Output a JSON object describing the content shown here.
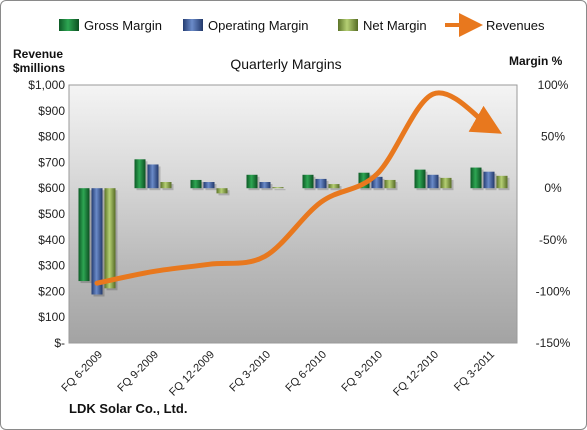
{
  "chart_data": {
    "type": "bar",
    "title": "Quarterly Margins",
    "categories": [
      "FQ 6-2009",
      "FQ 9-2009",
      "FQ 12-2009",
      "FQ 3-2010",
      "FQ 6-2010",
      "FQ 9-2010",
      "FQ 12-2010",
      "FQ 3-2011"
    ],
    "series": [
      {
        "name": "Gross Margin",
        "axis": "right",
        "color": "#1e7a3c",
        "values": [
          -90,
          28,
          8,
          13,
          13,
          15,
          18,
          20
        ]
      },
      {
        "name": "Operating Margin",
        "axis": "right",
        "color": "#3d5fa0",
        "values": [
          -103,
          23,
          6,
          6,
          9,
          11,
          13,
          16
        ]
      },
      {
        "name": "Net Margin",
        "axis": "right",
        "color": "#8aa64a",
        "values": [
          -97,
          6,
          -5,
          1,
          4,
          8,
          10,
          12
        ]
      },
      {
        "name": "Revenues",
        "axis": "left",
        "type": "line",
        "color": "#e8781e",
        "values": [
          232,
          277,
          305,
          336,
          546,
          655,
          965,
          840
        ]
      }
    ],
    "left_axis": {
      "label_line1": "Revenue",
      "label_line2": "$millions",
      "min": 0,
      "max": 1000,
      "ticks": [
        "$-",
        "$100",
        "$200",
        "$300",
        "$400",
        "$500",
        "$600",
        "$700",
        "$800",
        "$900",
        "$1,000"
      ]
    },
    "right_axis": {
      "label": "Margin %",
      "min": -150,
      "max": 100,
      "ticks": [
        "100%",
        "50%",
        "0%",
        "-50%",
        "-100%",
        "-150%"
      ]
    },
    "legend_position": "top",
    "grid": false
  },
  "footer": "LDK Solar Co., Ltd."
}
